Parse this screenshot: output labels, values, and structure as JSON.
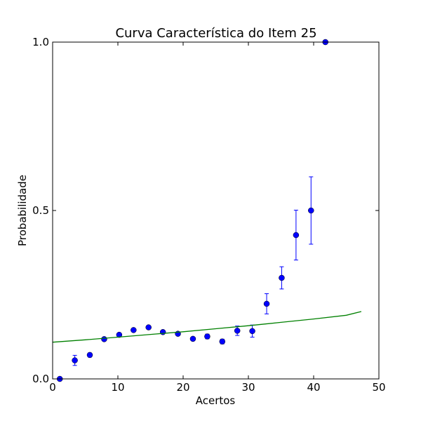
{
  "chart_data": {
    "type": "scatter",
    "title": "Curva Característica do Item 25",
    "xlabel": "Acertos",
    "ylabel": "Probabilidade",
    "xlim": [
      0,
      50
    ],
    "ylim": [
      0,
      1
    ],
    "xticks": [
      0,
      10,
      20,
      30,
      40,
      50
    ],
    "xtick_labels": [
      "0",
      "10",
      "20",
      "30",
      "40",
      "50"
    ],
    "yticks": [
      0,
      0.5,
      1
    ],
    "ytick_labels": [
      "0.0",
      "0.5",
      "1.0"
    ],
    "grid": false,
    "series": [
      {
        "kind": "errorbar-points",
        "color": "#0000ff",
        "x": [
          1.1,
          3.4,
          5.7,
          7.9,
          10.2,
          12.4,
          14.7,
          16.9,
          19.2,
          21.5,
          23.7,
          26.0,
          28.3,
          30.6,
          32.8,
          35.1,
          37.3,
          39.6,
          41.8
        ],
        "y": [
          0.0,
          0.055,
          0.071,
          0.118,
          0.131,
          0.145,
          0.153,
          0.139,
          0.134,
          0.119,
          0.126,
          0.111,
          0.143,
          0.142,
          0.223,
          0.3,
          0.427,
          0.5,
          1.0
        ],
        "err": [
          0.0,
          0.015,
          0.006,
          0.004,
          0.004,
          0.004,
          0.004,
          0.004,
          0.004,
          0.005,
          0.007,
          0.007,
          0.014,
          0.018,
          0.03,
          0.033,
          0.074,
          0.1,
          0.0
        ]
      },
      {
        "kind": "line",
        "color": "#008000",
        "x": [
          0,
          5,
          10,
          15,
          20,
          25,
          30,
          35,
          40,
          45,
          47.3
        ],
        "y": [
          0.109,
          0.116,
          0.124,
          0.132,
          0.14,
          0.149,
          0.158,
          0.168,
          0.178,
          0.189,
          0.2
        ]
      }
    ]
  }
}
